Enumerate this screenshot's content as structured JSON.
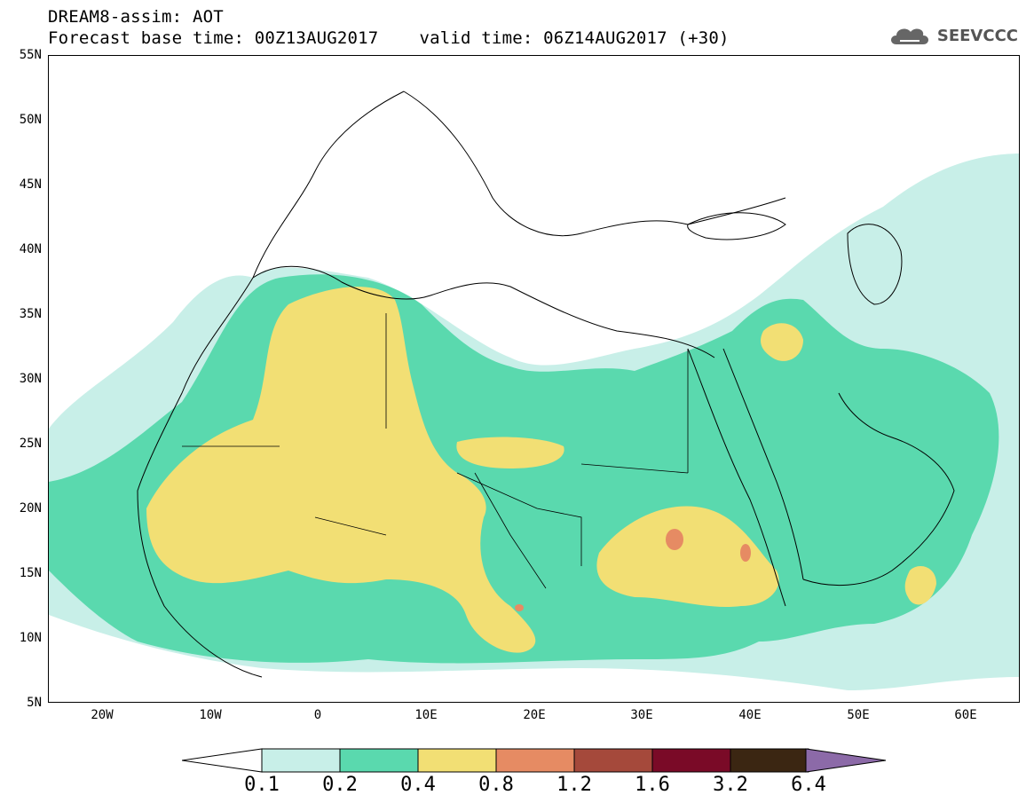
{
  "title": {
    "line1": "DREAM8-assim: AOT",
    "base": "Forecast base time: 00Z13AUG2017",
    "valid": "valid time: 06Z14AUG2017 (+30)"
  },
  "logo": {
    "text": "SEEVCCC",
    "icon": "cloud-icon"
  },
  "map": {
    "lon_range": [
      -25,
      65
    ],
    "lat_range": [
      5,
      55
    ],
    "lat_ticks": [
      "55N",
      "50N",
      "45N",
      "40N",
      "35N",
      "30N",
      "25N",
      "20N",
      "15N",
      "10N",
      "5N"
    ],
    "lon_ticks": [
      "20W",
      "10W",
      "0",
      "10E",
      "20E",
      "30E",
      "40E",
      "50E",
      "60E"
    ]
  },
  "colorbar": {
    "levels": [
      "0.1",
      "0.2",
      "0.4",
      "0.8",
      "1.2",
      "1.6",
      "3.2",
      "6.4"
    ],
    "colors": [
      "#c8efe8",
      "#5ad9ae",
      "#f2df74",
      "#e68b63",
      "#a5493b",
      "#7a0a27",
      "#3b2612",
      "#8c6aa8"
    ],
    "under_color": "#ffffff"
  }
}
